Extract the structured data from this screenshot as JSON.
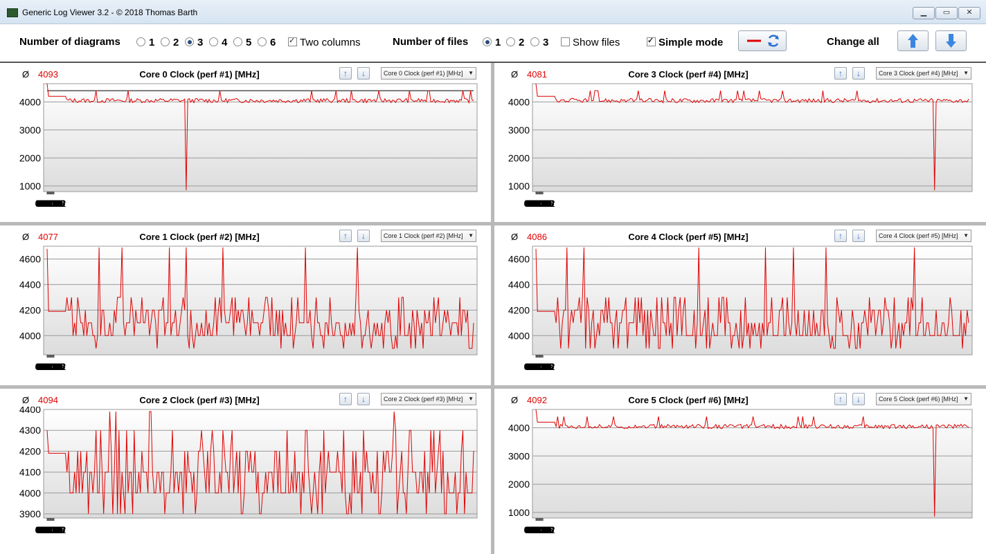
{
  "window": {
    "title": "Generic Log Viewer 3.2 - © 2018 Thomas Barth"
  },
  "toolbar": {
    "num_diagrams_label": "Number of diagrams",
    "diagram_options": [
      "1",
      "2",
      "3",
      "4",
      "5",
      "6"
    ],
    "diagram_selected": "3",
    "two_columns_label": "Two columns",
    "two_columns_checked": true,
    "num_files_label": "Number of files",
    "file_options": [
      "1",
      "2",
      "3"
    ],
    "file_selected": "1",
    "show_files_label": "Show files",
    "show_files_checked": false,
    "simple_mode_label": "Simple mode",
    "simple_mode_checked": true,
    "change_all_label": "Change all"
  },
  "x_ticks": [
    "00:00",
    "00:02",
    "00:04",
    "00:06",
    "00:08",
    "00:10",
    "00:12",
    "00:14",
    "00:16",
    "00:18",
    "00:20",
    "00:22"
  ],
  "panels": [
    {
      "avg_symbol": "Ø",
      "avg": "4093",
      "title": "Core 0 Clock (perf #1) [MHz]",
      "select": "Core 0 Clock (perf #1) [MHz]"
    },
    {
      "avg_symbol": "Ø",
      "avg": "4081",
      "title": "Core 3 Clock (perf #4) [MHz]",
      "select": "Core 3 Clock (perf #4) [MHz]"
    },
    {
      "avg_symbol": "Ø",
      "avg": "4077",
      "title": "Core 1 Clock (perf #2) [MHz]",
      "select": "Core 1 Clock (perf #2) [MHz]"
    },
    {
      "avg_symbol": "Ø",
      "avg": "4086",
      "title": "Core 4 Clock (perf #5) [MHz]",
      "select": "Core 4 Clock (perf #5) [MHz]"
    },
    {
      "avg_symbol": "Ø",
      "avg": "4094",
      "title": "Core 2 Clock (perf #3) [MHz]",
      "select": "Core 2 Clock (perf #3) [MHz]"
    },
    {
      "avg_symbol": "Ø",
      "avg": "4092",
      "title": "Core 5 Clock (perf #6) [MHz]",
      "select": "Core 5 Clock (perf #6) [MHz]"
    }
  ],
  "colors": {
    "series": "#e00000",
    "reference_line": "#000000",
    "grid": "#9a9a9a"
  },
  "chart_data": [
    {
      "type": "line",
      "title": "Core 0 Clock (perf #1) [MHz]",
      "x_range": [
        "00:00",
        "00:22:40"
      ],
      "yticks": [
        1000,
        2000,
        3000,
        4000
      ],
      "ylim": [
        800,
        4650
      ],
      "reference_line": 4400,
      "spikes": [
        {
          "t": "00:07:25",
          "value": 850
        }
      ],
      "baseline": 4100,
      "start_value": 4650
    },
    {
      "type": "line",
      "title": "Core 3 Clock (perf #4) [MHz]",
      "x_range": [
        "00:00",
        "00:22:40"
      ],
      "yticks": [
        1000,
        2000,
        3000,
        4000
      ],
      "ylim": [
        800,
        4650
      ],
      "spikes": [
        {
          "t": "00:20:55",
          "value": 850
        }
      ],
      "baseline": 4100,
      "start_value": 4650
    },
    {
      "type": "line",
      "title": "Core 1 Clock (perf #2) [MHz]",
      "x_range": [
        "00:00",
        "00:22:40"
      ],
      "yticks": [
        4000,
        4200,
        4400,
        4600
      ],
      "ylim": [
        3850,
        4700
      ],
      "baseline": 4100,
      "start_value": 4680
    },
    {
      "type": "line",
      "title": "Core 4 Clock (perf #5) [MHz]",
      "x_range": [
        "00:00",
        "00:22:40"
      ],
      "yticks": [
        4000,
        4200,
        4400,
        4600
      ],
      "ylim": [
        3850,
        4700
      ],
      "baseline": 4100,
      "start_value": 4680
    },
    {
      "type": "line",
      "title": "Core 2 Clock (perf #3) [MHz]",
      "x_range": [
        "00:00",
        "00:22:40"
      ],
      "yticks": [
        3900,
        4000,
        4100,
        4200,
        4300,
        4400
      ],
      "ylim": [
        3880,
        4400
      ],
      "baseline": 4100,
      "start_value": 4300
    },
    {
      "type": "line",
      "title": "Core 5 Clock (perf #6) [MHz]",
      "x_range": [
        "00:00",
        "00:22:40"
      ],
      "yticks": [
        1000,
        2000,
        3000,
        4000
      ],
      "ylim": [
        800,
        4650
      ],
      "spikes": [
        {
          "t": "00:20:55",
          "value": 850
        }
      ],
      "baseline": 4100,
      "start_value": 4650
    }
  ]
}
